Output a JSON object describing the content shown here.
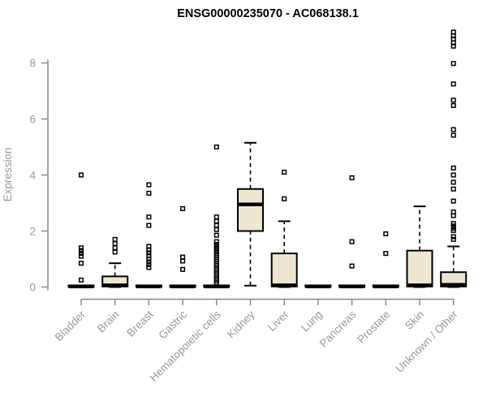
{
  "page": {
    "background": "#ffffff"
  },
  "chart_data": {
    "type": "boxplot",
    "title": "ENSG00000235070 - AC068138.1",
    "xlabel": "",
    "ylabel": "Expression",
    "yticks": [
      0,
      2,
      4,
      6,
      8
    ],
    "ylim": [
      0,
      9.3
    ],
    "grid": false,
    "legend": "none",
    "categories": [
      "Bladder",
      "Brain",
      "Breast",
      "Gastric",
      "Hematopoietic cells",
      "Kidney",
      "Liver",
      "Lung",
      "Pancreas",
      "Prostate",
      "Skin",
      "Unknown / Other"
    ],
    "boxes": [
      {
        "category": "Bladder",
        "min": 0,
        "q1": 0.01,
        "median": 0.02,
        "q3": 0.06,
        "max": 0.06,
        "outliers": [
          4.0,
          1.4,
          1.3,
          1.2,
          1.1,
          0.85,
          0.25
        ]
      },
      {
        "category": "Brain",
        "min": 0,
        "q1": 0.02,
        "median": 0.06,
        "q3": 0.38,
        "max": 0.85,
        "outliers": [
          1.7,
          1.55,
          1.4,
          1.25
        ]
      },
      {
        "category": "Breast",
        "min": 0,
        "q1": 0.01,
        "median": 0.02,
        "q3": 0.06,
        "max": 0.06,
        "outliers": [
          3.65,
          3.35,
          2.5,
          2.2,
          1.45,
          1.33,
          1.22,
          1.12,
          1.0,
          0.9,
          0.8,
          0.7
        ]
      },
      {
        "category": "Gastric",
        "min": 0,
        "q1": 0.01,
        "median": 0.02,
        "q3": 0.06,
        "max": 0.06,
        "outliers": [
          2.8,
          1.07,
          0.93,
          0.63
        ]
      },
      {
        "category": "Hematopoietic cells",
        "min": 0,
        "q1": 0.01,
        "median": 0.02,
        "q3": 0.06,
        "max": 0.06,
        "outliers": [
          5.0,
          2.5,
          2.35,
          2.2,
          2.05,
          1.85,
          1.62,
          1.52,
          1.44,
          1.36,
          1.28,
          1.2,
          1.13,
          1.06,
          0.99,
          0.92,
          0.85,
          0.78,
          0.71,
          0.64,
          0.57,
          0.5,
          0.43,
          0.36,
          0.29,
          0.22,
          0.15
        ]
      },
      {
        "category": "Kidney",
        "min": 0.05,
        "q1": 2.0,
        "median": 2.95,
        "q3": 3.5,
        "max": 5.15,
        "outliers": []
      },
      {
        "category": "Liver",
        "min": 0,
        "q1": 0.02,
        "median": 0.06,
        "q3": 1.2,
        "max": 2.35,
        "outliers": [
          4.1,
          3.15
        ]
      },
      {
        "category": "Lung",
        "min": 0,
        "q1": 0.01,
        "median": 0.02,
        "q3": 0.06,
        "max": 0.06,
        "outliers": []
      },
      {
        "category": "Pancreas",
        "min": 0,
        "q1": 0.01,
        "median": 0.02,
        "q3": 0.06,
        "max": 0.06,
        "outliers": [
          3.9,
          1.62,
          0.75
        ]
      },
      {
        "category": "Prostate",
        "min": 0,
        "q1": 0.01,
        "median": 0.02,
        "q3": 0.06,
        "max": 0.06,
        "outliers": [
          1.9,
          1.2
        ]
      },
      {
        "category": "Skin",
        "min": 0,
        "q1": 0.02,
        "median": 0.06,
        "q3": 1.3,
        "max": 2.88,
        "outliers": []
      },
      {
        "category": "Unknown / Other",
        "min": 0,
        "q1": 0.02,
        "median": 0.08,
        "q3": 0.53,
        "max": 1.45,
        "outliers": [
          1.7,
          1.8,
          2.02,
          2.1,
          2.18,
          2.27,
          2.55,
          2.68,
          3.07,
          3.5,
          3.74,
          4.0,
          4.25,
          5.42,
          5.62,
          6.48,
          6.67,
          7.25,
          7.98,
          8.6,
          8.72,
          8.85,
          8.97,
          9.1
        ]
      }
    ],
    "colors": {
      "box_fill": "#EDE7D1",
      "box_stroke": "#000000",
      "median_stroke": "#000000",
      "whisker_stroke": "#000000",
      "outlier_stroke": "#000000",
      "axis_line": "#888888",
      "tick_text": "#999999",
      "title_text": "#000000",
      "background": "#ffffff"
    }
  }
}
